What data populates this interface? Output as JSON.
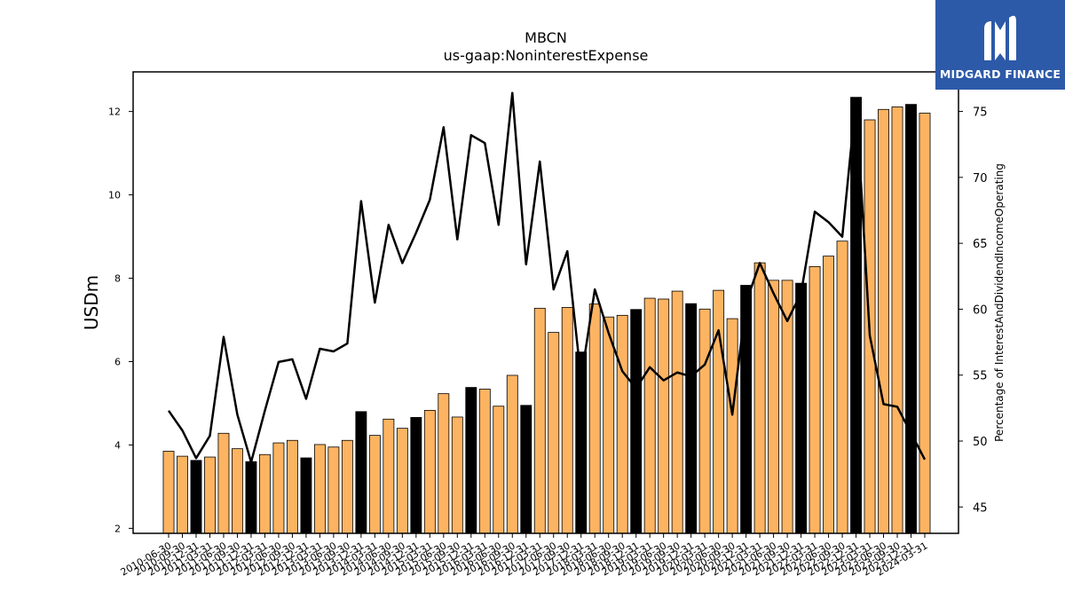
{
  "brand": {
    "name": "MIDGARD FINANCE",
    "bg_color": "#2d5aa8",
    "text_color": "#ffffff"
  },
  "chart_data": {
    "type": "bar",
    "title": "MBCN",
    "subtitle": "us-gaap:NoninterestExpense",
    "ylabel": "USDm",
    "y2label": "Percentage of InterestAndDividendIncomeOperating",
    "ylim": [
      1.88,
      12.95
    ],
    "y2lim": [
      43.0,
      78.0
    ],
    "yticks": [
      2,
      4,
      6,
      8,
      10,
      12
    ],
    "y2ticks": [
      45,
      50,
      55,
      60,
      65,
      70,
      75
    ],
    "colors": {
      "bar": "#fdb462",
      "bar_q4": "#000000",
      "line": "#000000"
    },
    "categories": [
      "2010-06-30",
      "2010-09-30",
      "2010-12-31",
      "2011-03-31",
      "2011-06-30",
      "2011-09-30",
      "2011-12-31",
      "2012-03-31",
      "2012-06-30",
      "2012-09-30",
      "2012-12-31",
      "2013-03-31",
      "2013-06-30",
      "2013-09-30",
      "2013-12-31",
      "2014-03-31",
      "2014-06-30",
      "2014-09-30",
      "2014-12-31",
      "2015-03-31",
      "2015-06-30",
      "2015-09-30",
      "2015-12-31",
      "2016-03-31",
      "2016-06-30",
      "2016-09-30",
      "2016-12-31",
      "2017-03-31",
      "2017-06-30",
      "2017-09-30",
      "2017-12-31",
      "2018-03-31",
      "2018-06-30",
      "2018-09-30",
      "2018-12-31",
      "2019-03-31",
      "2019-06-30",
      "2019-09-30",
      "2019-12-31",
      "2020-03-31",
      "2020-06-30",
      "2020-09-30",
      "2020-12-31",
      "2021-03-31",
      "2021-06-30",
      "2021-09-30",
      "2021-12-31",
      "2022-03-31",
      "2022-06-30",
      "2022-09-30",
      "2022-12-31",
      "2023-03-31",
      "2023-06-30",
      "2023-09-30",
      "2023-12-31",
      "2024-03-31"
    ],
    "series": [
      {
        "kind": "bar",
        "axis": "left",
        "values": [
          3.85,
          3.73,
          3.63,
          3.71,
          4.28,
          3.91,
          3.6,
          3.77,
          4.05,
          4.11,
          3.69,
          4.01,
          3.95,
          4.11,
          4.8,
          4.23,
          4.62,
          4.4,
          4.66,
          4.83,
          5.23,
          4.67,
          5.38,
          5.34,
          4.93,
          5.67,
          4.95,
          7.28,
          6.7,
          7.3,
          6.23,
          7.38,
          7.07,
          7.11,
          7.25,
          7.52,
          7.5,
          7.69,
          7.39,
          7.26,
          7.71,
          7.03,
          7.83,
          8.37,
          7.95,
          7.95,
          7.88,
          8.28,
          8.53,
          8.89,
          12.34,
          11.8,
          12.05,
          12.11,
          12.17,
          11.96
        ],
        "highlight": [
          false,
          false,
          true,
          false,
          false,
          false,
          true,
          false,
          false,
          false,
          true,
          false,
          false,
          false,
          true,
          false,
          false,
          false,
          true,
          false,
          false,
          false,
          true,
          false,
          false,
          false,
          true,
          false,
          false,
          false,
          true,
          false,
          false,
          false,
          true,
          false,
          false,
          false,
          true,
          false,
          false,
          false,
          true,
          false,
          false,
          false,
          true,
          false,
          false,
          false,
          true,
          false,
          false,
          false,
          true,
          false
        ]
      },
      {
        "kind": "line",
        "axis": "right",
        "values": [
          52.3,
          50.8,
          48.7,
          50.4,
          57.9,
          52.0,
          48.4,
          52.3,
          56.0,
          56.2,
          53.2,
          57.0,
          56.8,
          57.4,
          68.2,
          60.5,
          66.4,
          63.5,
          65.8,
          68.3,
          73.8,
          65.3,
          73.2,
          72.6,
          66.4,
          76.4,
          63.4,
          71.2,
          61.5,
          64.4,
          54.7,
          61.5,
          58.2,
          55.3,
          54.0,
          55.6,
          54.6,
          55.2,
          54.9,
          55.8,
          58.4,
          52.0,
          60.5,
          63.5,
          61.2,
          59.1,
          61.2,
          67.4,
          66.6,
          65.5,
          76.0,
          58.0,
          52.8,
          52.6,
          50.6,
          48.6
        ]
      }
    ]
  }
}
